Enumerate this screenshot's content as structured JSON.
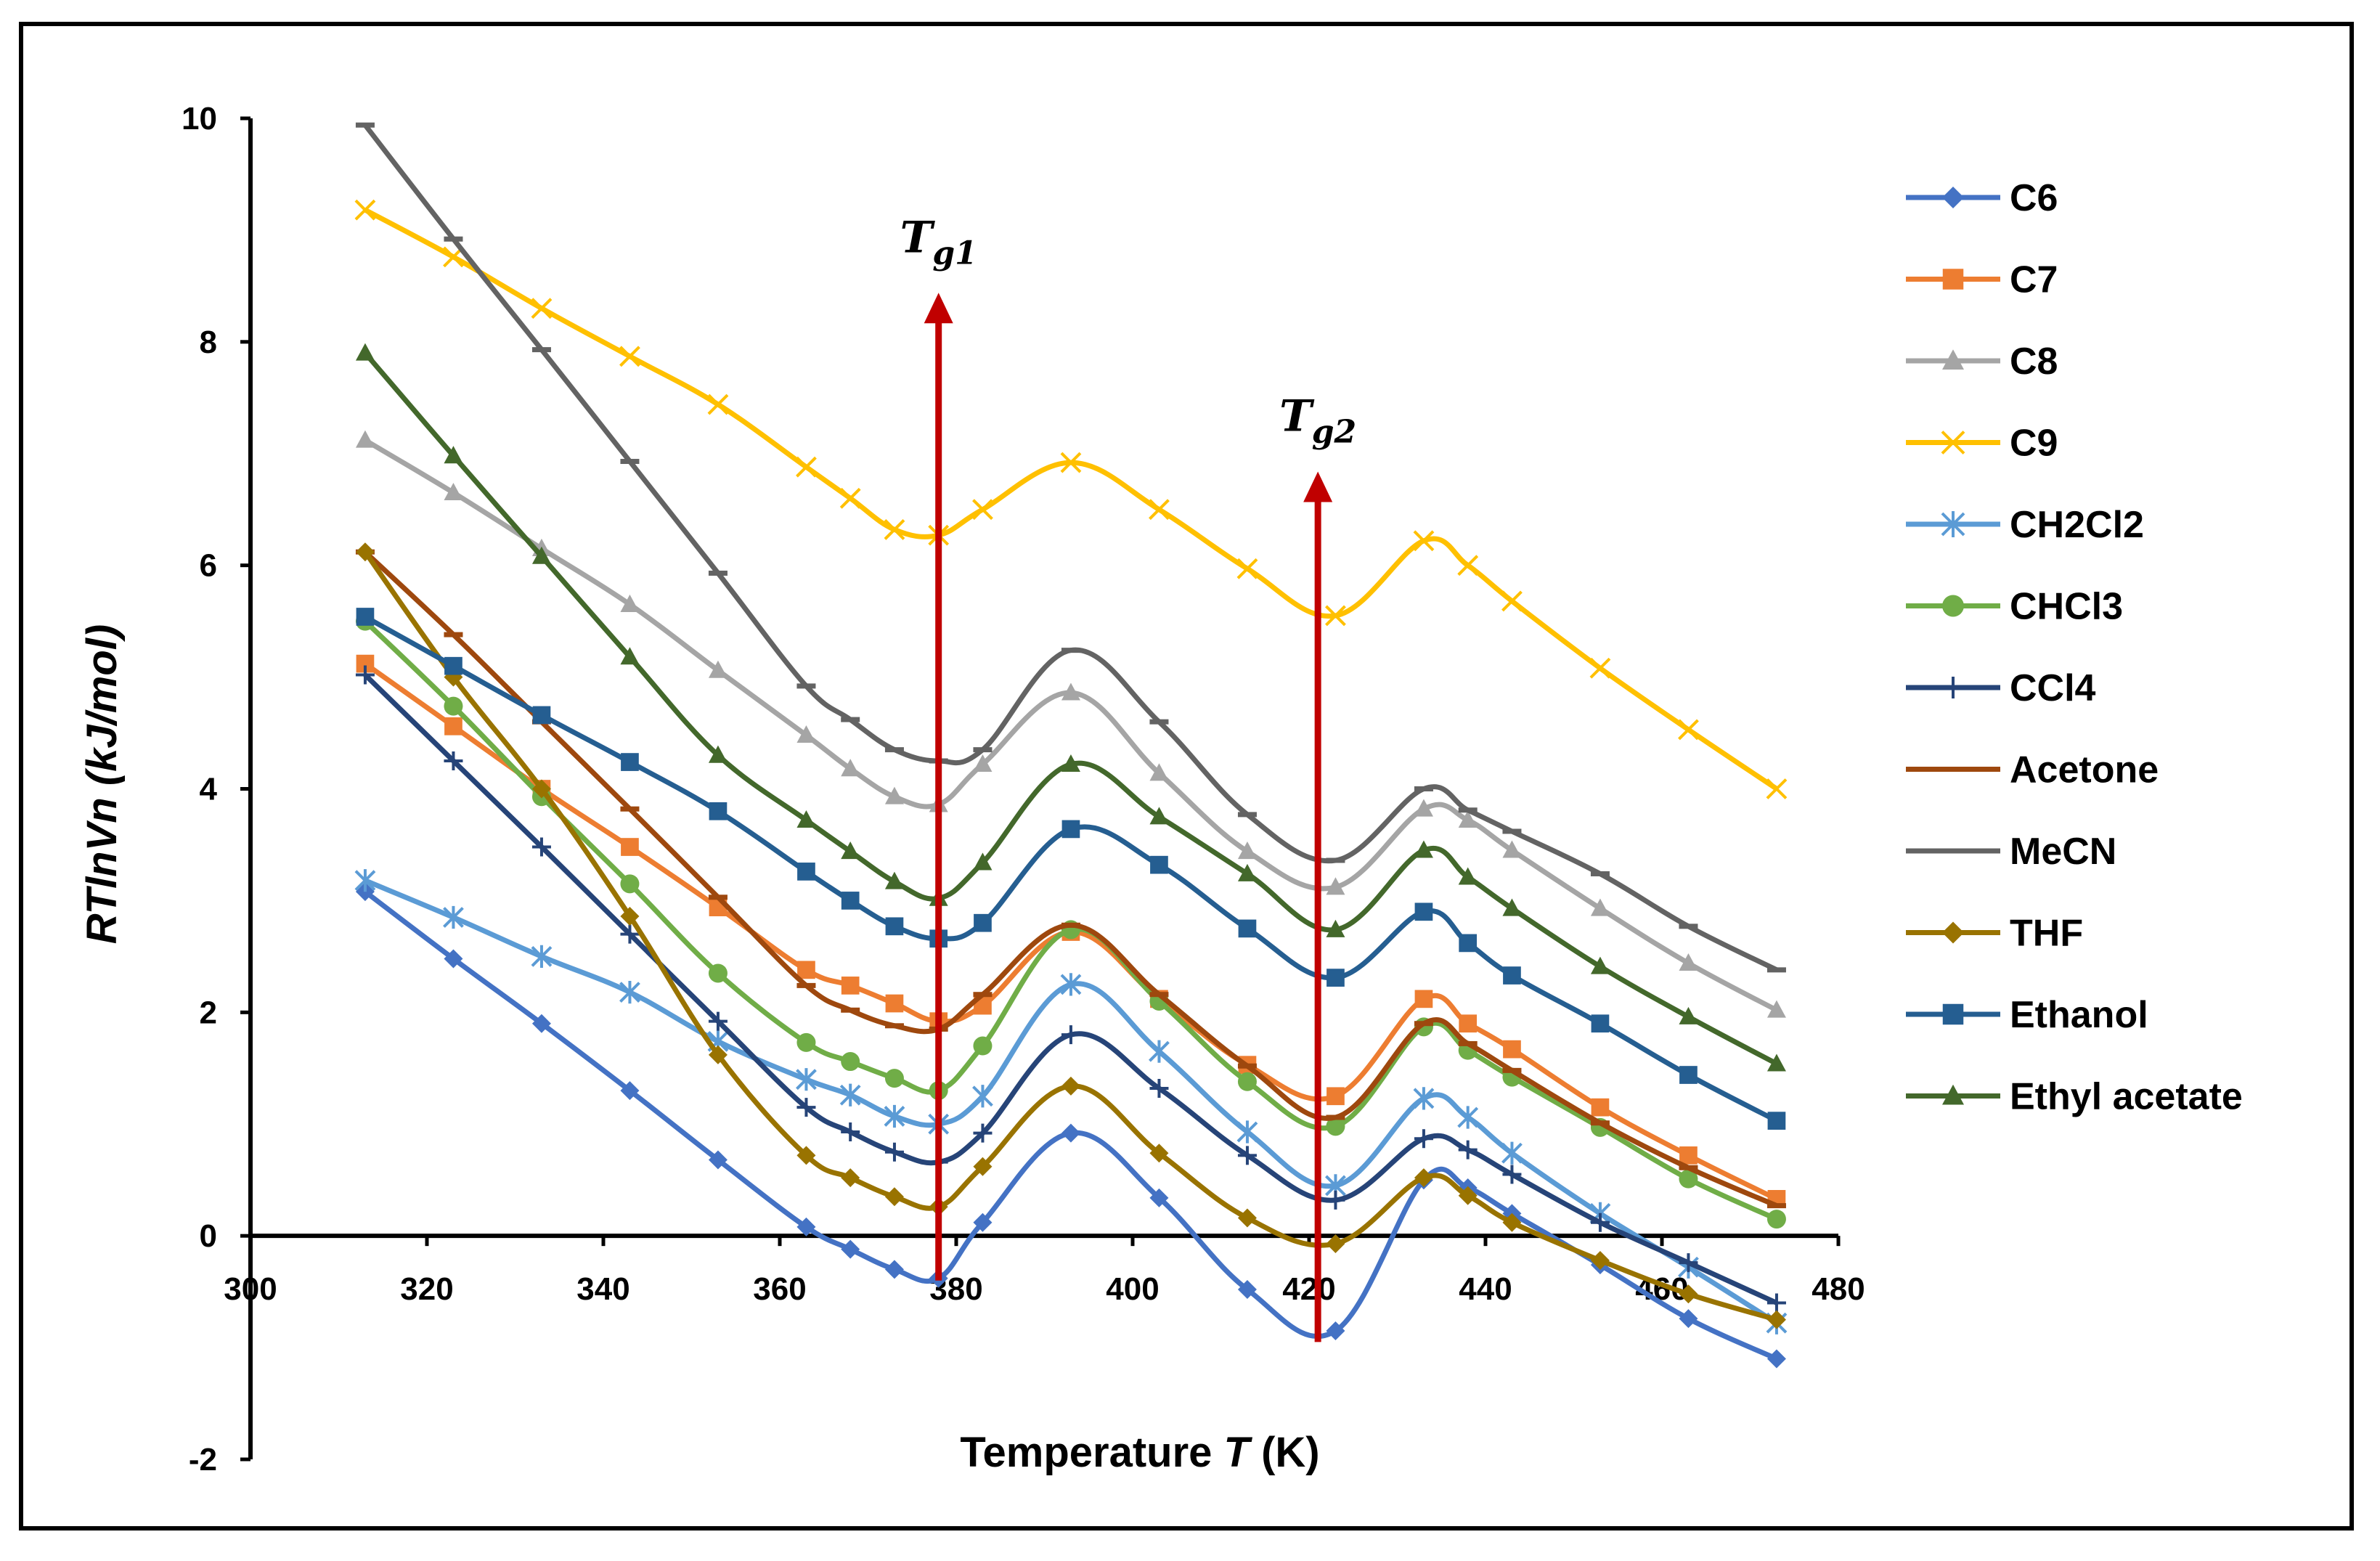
{
  "chart_data": {
    "type": "line",
    "title": "",
    "xlabel_prefix": "Temperature ",
    "xlabel_var": "T",
    "xlabel_suffix": " (K)",
    "ylabel": "RTlnVn (kJ/mol)",
    "xlim": [
      300,
      480
    ],
    "ylim": [
      -2,
      10
    ],
    "xticks": [
      300,
      320,
      340,
      360,
      380,
      400,
      420,
      440,
      460,
      480
    ],
    "yticks": [
      -2,
      0,
      2,
      4,
      6,
      8,
      10
    ],
    "grid": false,
    "legend_position": "right",
    "x": [
      313,
      323,
      333,
      343,
      353,
      363,
      368,
      373,
      378,
      383,
      393,
      403,
      413,
      423,
      433,
      438,
      443,
      453,
      463,
      473
    ],
    "series": [
      {
        "name": "C6",
        "color": "#4472C4",
        "marker": "diamond",
        "values": [
          3.08,
          2.48,
          1.9,
          1.3,
          0.68,
          0.08,
          -0.12,
          -0.3,
          -0.38,
          0.12,
          0.92,
          0.34,
          -0.48,
          -0.85,
          0.5,
          0.43,
          0.2,
          -0.26,
          -0.74,
          -1.1
        ]
      },
      {
        "name": "C7",
        "color": "#ED7D31",
        "marker": "square",
        "values": [
          5.12,
          4.56,
          4.0,
          3.48,
          2.94,
          2.38,
          2.24,
          2.08,
          1.92,
          2.06,
          2.72,
          2.12,
          1.53,
          1.25,
          2.12,
          1.9,
          1.67,
          1.15,
          0.72,
          0.33
        ]
      },
      {
        "name": "C8",
        "color": "#A5A5A5",
        "marker": "triangle",
        "values": [
          7.12,
          6.65,
          6.15,
          5.65,
          5.06,
          4.48,
          4.18,
          3.93,
          3.86,
          4.22,
          4.86,
          4.14,
          3.44,
          3.12,
          3.82,
          3.72,
          3.45,
          2.93,
          2.44,
          2.02
        ]
      },
      {
        "name": "C9",
        "color": "#FFC000",
        "marker": "x",
        "values": [
          9.18,
          8.76,
          8.3,
          7.87,
          7.44,
          6.88,
          6.6,
          6.32,
          6.27,
          6.5,
          6.92,
          6.5,
          5.97,
          5.55,
          6.22,
          6.0,
          5.68,
          5.08,
          4.53,
          4.0
        ]
      },
      {
        "name": "CH2Cl2",
        "color": "#5B9BD5",
        "marker": "asterisk",
        "values": [
          3.18,
          2.85,
          2.5,
          2.18,
          1.74,
          1.4,
          1.26,
          1.07,
          1.0,
          1.25,
          2.25,
          1.65,
          0.93,
          0.45,
          1.23,
          1.06,
          0.74,
          0.2,
          -0.28,
          -0.78
        ]
      },
      {
        "name": "CHCl3",
        "color": "#70AD47",
        "marker": "circle",
        "values": [
          5.5,
          4.74,
          3.93,
          3.15,
          2.35,
          1.73,
          1.56,
          1.41,
          1.3,
          1.7,
          2.74,
          2.1,
          1.38,
          0.98,
          1.87,
          1.66,
          1.42,
          0.97,
          0.51,
          0.15
        ]
      },
      {
        "name": "CCl4",
        "color": "#264478",
        "marker": "plus",
        "values": [
          5.02,
          4.25,
          3.48,
          2.7,
          1.92,
          1.15,
          0.93,
          0.75,
          0.66,
          0.92,
          1.8,
          1.32,
          0.72,
          0.32,
          0.87,
          0.77,
          0.55,
          0.12,
          -0.24,
          -0.6
        ]
      },
      {
        "name": "Acetone",
        "color": "#9E480E",
        "marker": "dash",
        "values": [
          6.12,
          5.38,
          4.6,
          3.82,
          3.03,
          2.24,
          2.02,
          1.88,
          1.85,
          2.16,
          2.78,
          2.16,
          1.52,
          1.06,
          1.9,
          1.72,
          1.48,
          1.01,
          0.61,
          0.27
        ]
      },
      {
        "name": "MeCN",
        "color": "#636363",
        "marker": "dash",
        "values": [
          9.94,
          8.92,
          7.93,
          6.93,
          5.93,
          4.92,
          4.62,
          4.35,
          4.25,
          4.35,
          5.24,
          4.6,
          3.77,
          3.36,
          4.0,
          3.81,
          3.62,
          3.24,
          2.77,
          2.38
        ]
      },
      {
        "name": "THF",
        "color": "#997300",
        "marker": "diamond",
        "values": [
          6.12,
          5.0,
          4.0,
          2.86,
          1.62,
          0.72,
          0.52,
          0.35,
          0.26,
          0.62,
          1.34,
          0.74,
          0.16,
          -0.07,
          0.52,
          0.36,
          0.12,
          -0.22,
          -0.52,
          -0.75
        ]
      },
      {
        "name": "Ethanol",
        "color": "#255E91",
        "marker": "square",
        "values": [
          5.54,
          5.1,
          4.66,
          4.24,
          3.8,
          3.26,
          3.0,
          2.77,
          2.66,
          2.8,
          3.64,
          3.32,
          2.75,
          2.31,
          2.9,
          2.62,
          2.33,
          1.9,
          1.44,
          1.03
        ]
      },
      {
        "name": "Ethyl acetate",
        "color": "#43682B",
        "marker": "triangle",
        "values": [
          7.9,
          6.98,
          6.08,
          5.18,
          4.3,
          3.72,
          3.44,
          3.17,
          3.02,
          3.34,
          4.22,
          3.75,
          3.24,
          2.74,
          3.45,
          3.21,
          2.93,
          2.41,
          1.96,
          1.54
        ]
      }
    ],
    "annotations": [
      {
        "label": "T",
        "subscript": "g1",
        "x": 378,
        "y_top": 8.4,
        "y_bottom": -0.4,
        "color": "#C00000"
      },
      {
        "label": "T",
        "subscript": "g2",
        "x": 421,
        "y_top": 6.8,
        "y_bottom": -0.95,
        "color": "#C00000"
      }
    ]
  }
}
